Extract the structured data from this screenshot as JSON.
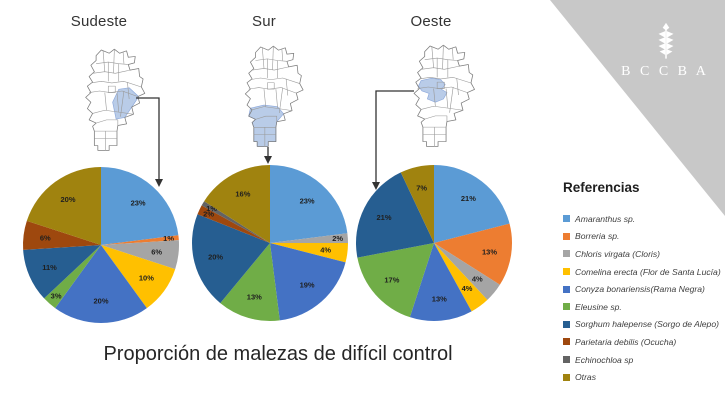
{
  "slide": {
    "title": "Proporción de malezas de difícil control"
  },
  "logo": {
    "text": "B C C B A",
    "icon": "wheat-spike-icon",
    "banner_color": "#C8C8C8"
  },
  "legend": {
    "title": "Referencias",
    "items": [
      {
        "label": "Amaranthus sp.",
        "color": "#5B9BD5"
      },
      {
        "label": "Borreria sp.",
        "color": "#ED7D31"
      },
      {
        "label": "Chloris virgata (Cloris)",
        "color": "#A5A5A5"
      },
      {
        "label": "Comelina erecta (Flor de Santa Lucía)",
        "color": "#FFC000"
      },
      {
        "label": "Conyza bonariensis(Rama Negra)",
        "color": "#4472C4"
      },
      {
        "label": "Eleusine sp.",
        "color": "#70AD47"
      },
      {
        "label": "Sorghum halepense (Sorgo de Alepo)",
        "color": "#265E91"
      },
      {
        "label": "Parietaria debilis (Ocucha)",
        "color": "#9E480E"
      },
      {
        "label": "Echinochloa sp",
        "color": "#636363"
      },
      {
        "label": "Otras",
        "color": "#A0830F"
      }
    ]
  },
  "chart_data": [
    {
      "type": "pie",
      "title": "Sudeste",
      "label_format": "percent",
      "categories": [
        "Amaranthus sp.",
        "Borreria sp.",
        "Chloris virgata (Cloris)",
        "Comelina erecta (Flor de Santa Lucía)",
        "Conyza bonariensis(Rama Negra)",
        "Eleusine sp.",
        "Sorghum halepense (Sorgo de Alepo)",
        "Parietaria debilis (Ocucha)",
        "Echinochloa sp",
        "Otras"
      ],
      "values": [
        23,
        1,
        6,
        10,
        20,
        3,
        11,
        6,
        0,
        20
      ]
    },
    {
      "type": "pie",
      "title": "Sur",
      "label_format": "percent",
      "categories": [
        "Amaranthus sp.",
        "Borreria sp.",
        "Chloris virgata (Cloris)",
        "Comelina erecta (Flor de Santa Lucía)",
        "Conyza bonariensis(Rama Negra)",
        "Eleusine sp.",
        "Sorghum halepense (Sorgo de Alepo)",
        "Parietaria debilis (Ocucha)",
        "Echinochloa sp",
        "Otras"
      ],
      "values": [
        23,
        0,
        2,
        4,
        19,
        13,
        20,
        2,
        1,
        16
      ]
    },
    {
      "type": "pie",
      "title": "Oeste",
      "label_format": "percent",
      "categories": [
        "Amaranthus sp.",
        "Borreria sp.",
        "Chloris virgata (Cloris)",
        "Comelina erecta (Flor de Santa Lucía)",
        "Conyza bonariensis(Rama Negra)",
        "Eleusine sp.",
        "Sorghum halepense (Sorgo de Alepo)",
        "Parietaria debilis (Ocucha)",
        "Echinochloa sp",
        "Otras"
      ],
      "values": [
        21,
        13,
        4,
        4,
        13,
        17,
        21,
        0,
        0,
        7
      ]
    }
  ]
}
